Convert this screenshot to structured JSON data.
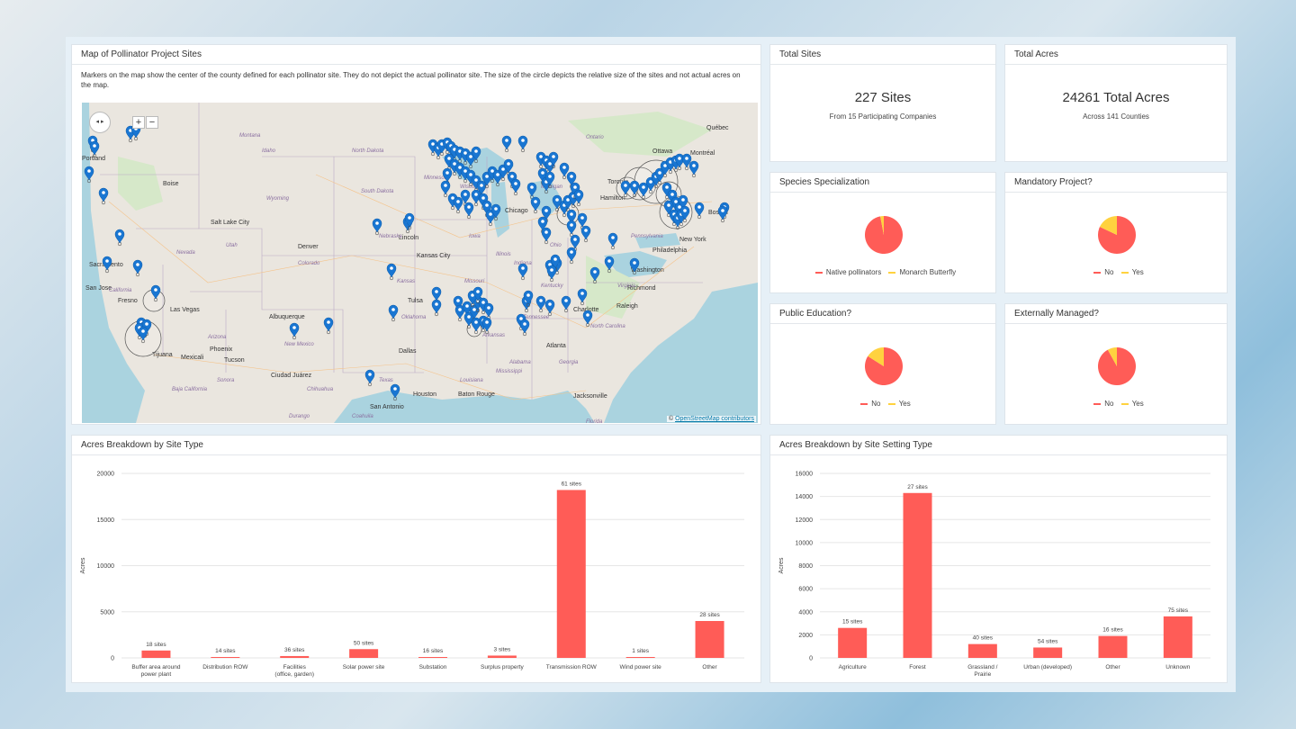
{
  "map_card": {
    "title": "Map of Pollinator Project Sites",
    "description": "Markers on the map show the center of the county defined for each pollinator site. They do not depict the actual pollinator site. The size of the circle depicts the relative size of the sites and not actual acres on the map.",
    "zoom_in": "+",
    "zoom_out": "−",
    "attribution_prefix": "© ",
    "attribution_link": "OpenStreetMap contributors",
    "cities": [
      "Portland",
      "Boise",
      "Salt Lake City",
      "Denver",
      "Sacramento",
      "San Jose",
      "Fresno",
      "Las Vegas",
      "Phoenix",
      "Tucson",
      "Mexicali",
      "Tijuana",
      "Albuquerque",
      "Ciudad Juárez",
      "Kansas City",
      "Tulsa",
      "Dallas",
      "Houston",
      "San Antonio",
      "Baton Rouge",
      "Jacksonville",
      "Atlanta",
      "Charlotte",
      "Raleigh",
      "Richmond",
      "Washington",
      "Philadelphia",
      "New York",
      "Boston",
      "Ottawa",
      "Montréal",
      "Québec",
      "Toronto",
      "Hamilton",
      "Chicago",
      "Lincoln"
    ],
    "states": [
      "Montana",
      "Idaho",
      "Wyoming",
      "Utah",
      "Nevada",
      "Colorado",
      "California",
      "Arizona",
      "New Mexico",
      "Texas",
      "Oklahoma",
      "Kansas",
      "Nebraska",
      "Iowa",
      "Missouri",
      "Illinois",
      "Indiana",
      "Ohio",
      "Kentucky",
      "Tennessee",
      "Georgia",
      "Alabama",
      "North Carolina",
      "Virginia",
      "Pennsylvania",
      "Michigan",
      "Wisconsin",
      "Minnesota",
      "North Dakota",
      "South Dakota",
      "Arkansas",
      "Louisiana",
      "Mississippi",
      "Florida",
      "Ontario",
      "Chihuahua",
      "Sonora",
      "Coahuila",
      "Baja California",
      "Durango"
    ]
  },
  "total_sites": {
    "title": "Total Sites",
    "value": "227 Sites",
    "sub": "From 15 Participating Companies"
  },
  "total_acres": {
    "title": "Total Acres",
    "value": "24261 Total Acres",
    "sub": "Across 141 Counties"
  },
  "species": {
    "title": "Species Specialization",
    "legend": [
      "Native pollinators",
      "Monarch Butterfly"
    ],
    "fractions": [
      0.97,
      0.03
    ]
  },
  "mandatory": {
    "title": "Mandatory Project?",
    "legend": [
      "No",
      "Yes"
    ],
    "fractions": [
      0.82,
      0.18
    ]
  },
  "public_edu": {
    "title": "Public Education?",
    "legend": [
      "No",
      "Yes"
    ],
    "fractions": [
      0.84,
      0.16
    ]
  },
  "external": {
    "title": "Externally Managed?",
    "legend": [
      "No",
      "Yes"
    ],
    "fractions": [
      0.92,
      0.08
    ]
  },
  "colors": {
    "primary": "#ff5c57",
    "secondary": "#ffd23f",
    "marker": "#1976d2"
  },
  "chart_data": [
    {
      "type": "bar",
      "title": "Acres Breakdown by Site Type",
      "ylabel": "Acres",
      "ylim": [
        0,
        20000
      ],
      "yticks": [
        0,
        5000,
        10000,
        15000,
        20000
      ],
      "categories": [
        "Buffer area around power plant",
        "Distribution ROW",
        "Facilities (office, garden)",
        "Solar power site",
        "Substation",
        "Surplus property",
        "Transmission ROW",
        "Wind power site",
        "Other"
      ],
      "category_lines": [
        [
          "Buffer area around",
          "power plant"
        ],
        [
          "Distribution ROW"
        ],
        [
          "Facilities",
          "(office, garden)"
        ],
        [
          "Solar power site"
        ],
        [
          "Substation"
        ],
        [
          "Surplus property"
        ],
        [
          "Transmission ROW"
        ],
        [
          "Wind power site"
        ],
        [
          "Other"
        ]
      ],
      "values": [
        800,
        60,
        200,
        950,
        80,
        250,
        18200,
        30,
        4000
      ],
      "data_labels": [
        "18 sites",
        "14 sites",
        "36 sites",
        "50 sites",
        "16 sites",
        "3 sites",
        "61 sites",
        "1 sites",
        "28 sites"
      ],
      "grid": true
    },
    {
      "type": "bar",
      "title": "Acres Breakdown by Site Setting Type",
      "ylabel": "Acres",
      "ylim": [
        0,
        16000
      ],
      "yticks": [
        0,
        2000,
        4000,
        6000,
        8000,
        10000,
        12000,
        14000,
        16000
      ],
      "categories": [
        "Agriculture",
        "Forest",
        "Grassland / Prairie",
        "Urban (developed)",
        "Other",
        "Unknown"
      ],
      "category_lines": [
        [
          "Agriculture"
        ],
        [
          "Forest"
        ],
        [
          "Grassland /",
          "Prairie"
        ],
        [
          "Urban (developed)"
        ],
        [
          "Other"
        ],
        [
          "Unknown"
        ]
      ],
      "values": [
        2600,
        14300,
        1200,
        900,
        1900,
        3600
      ],
      "data_labels": [
        "15 sites",
        "27 sites",
        "40 sites",
        "54 sites",
        "16 sites",
        "75 sites"
      ],
      "grid": true
    }
  ]
}
